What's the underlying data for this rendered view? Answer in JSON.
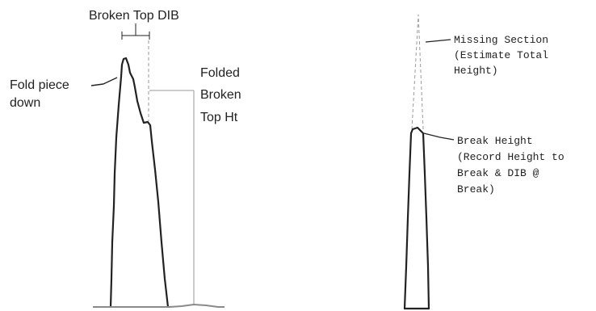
{
  "left_figure": {
    "dib_label": "Broken Top DIB",
    "fold_label": [
      "Fold piece",
      "down"
    ],
    "height_label": [
      "Folded",
      "Broken",
      "Top Ht"
    ]
  },
  "right_figure": {
    "missing_label": [
      "Missing Section",
      "(Estimate Total",
      "Height)"
    ],
    "break_label": [
      "Break Height",
      "(Record Height to",
      "Break & DIB @",
      "Break)"
    ]
  },
  "colors": {
    "ink": "#222222",
    "guide": "#9a9a9a",
    "ground": "#8a8a8a"
  }
}
